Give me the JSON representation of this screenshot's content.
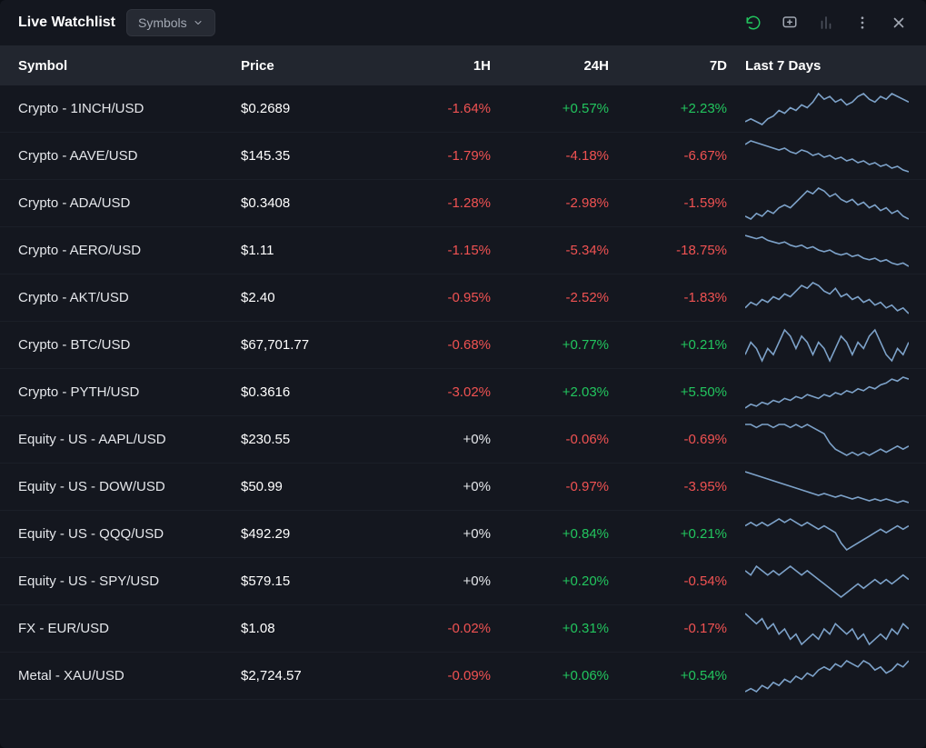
{
  "title": "Live Watchlist",
  "dropdown_label": "Symbols",
  "colors": {
    "positive": "#22c55e",
    "negative": "#f05252",
    "neutral": "#e5e7eb",
    "sparkline": "#7da2c9",
    "background": "#14171f",
    "header_bg": "#22262f"
  },
  "columns": {
    "symbol": "Symbol",
    "price": "Price",
    "h1": "1H",
    "h24": "24H",
    "d7": "7D",
    "last7": "Last 7 Days"
  },
  "rows": [
    {
      "symbol": "Crypto - 1INCH/USD",
      "price": "$0.2689",
      "h1": "-1.64%",
      "h24": "+0.57%",
      "d7": "+2.23%",
      "spark": [
        18,
        19,
        18,
        17,
        19,
        20,
        22,
        21,
        23,
        22,
        24,
        23,
        25,
        28,
        26,
        27,
        25,
        26,
        24,
        25,
        27,
        28,
        26,
        25,
        27,
        26,
        28,
        27,
        26,
        25
      ]
    },
    {
      "symbol": "Crypto - AAVE/USD",
      "price": "$145.35",
      "h1": "-1.79%",
      "h24": "-4.18%",
      "d7": "-6.67%",
      "spark": [
        30,
        32,
        31,
        30,
        29,
        28,
        27,
        28,
        26,
        25,
        27,
        26,
        24,
        25,
        23,
        24,
        22,
        23,
        21,
        22,
        20,
        21,
        19,
        20,
        18,
        19,
        17,
        18,
        16,
        15
      ]
    },
    {
      "symbol": "Crypto - ADA/USD",
      "price": "$0.3408",
      "h1": "-1.28%",
      "h24": "-2.98%",
      "d7": "-1.59%",
      "spark": [
        18,
        17,
        19,
        18,
        20,
        19,
        21,
        22,
        21,
        23,
        25,
        27,
        26,
        28,
        27,
        25,
        26,
        24,
        23,
        24,
        22,
        23,
        21,
        22,
        20,
        21,
        19,
        20,
        18,
        17
      ]
    },
    {
      "symbol": "Crypto - AERO/USD",
      "price": "$1.11",
      "h1": "-1.15%",
      "h24": "-5.34%",
      "d7": "-18.75%",
      "spark": [
        32,
        31,
        30,
        31,
        29,
        28,
        27,
        28,
        26,
        25,
        26,
        24,
        25,
        23,
        22,
        23,
        21,
        20,
        21,
        19,
        20,
        18,
        17,
        18,
        16,
        17,
        15,
        14,
        15,
        13
      ]
    },
    {
      "symbol": "Crypto - AKT/USD",
      "price": "$2.40",
      "h1": "-0.95%",
      "h24": "-2.52%",
      "d7": "-1.83%",
      "spark": [
        20,
        22,
        21,
        23,
        22,
        24,
        23,
        25,
        24,
        26,
        28,
        27,
        29,
        28,
        26,
        25,
        27,
        24,
        25,
        23,
        24,
        22,
        23,
        21,
        22,
        20,
        21,
        19,
        20,
        18
      ]
    },
    {
      "symbol": "Crypto - BTC/USD",
      "price": "$67,701.77",
      "h1": "-0.68%",
      "h24": "+0.77%",
      "d7": "+0.21%",
      "spark": [
        22,
        24,
        23,
        21,
        23,
        22,
        24,
        26,
        25,
        23,
        25,
        24,
        22,
        24,
        23,
        21,
        23,
        25,
        24,
        22,
        24,
        23,
        25,
        26,
        24,
        22,
        21,
        23,
        22,
        24
      ]
    },
    {
      "symbol": "Crypto - PYTH/USD",
      "price": "$0.3616",
      "h1": "-3.02%",
      "h24": "+2.03%",
      "d7": "+5.50%",
      "spark": [
        16,
        18,
        17,
        19,
        18,
        20,
        19,
        21,
        20,
        22,
        21,
        23,
        22,
        21,
        23,
        22,
        24,
        23,
        25,
        24,
        26,
        25,
        27,
        26,
        28,
        29,
        31,
        30,
        32,
        31
      ]
    },
    {
      "symbol": "Equity - US - AAPL/USD",
      "price": "$230.55",
      "h1": "+0%",
      "h24": "-0.06%",
      "d7": "-0.69%",
      "spark": [
        28,
        28,
        27,
        28,
        28,
        27,
        28,
        28,
        27,
        28,
        27,
        28,
        27,
        26,
        25,
        22,
        20,
        19,
        18,
        19,
        18,
        19,
        18,
        19,
        20,
        19,
        20,
        21,
        20,
        21
      ]
    },
    {
      "symbol": "Equity - US - DOW/USD",
      "price": "$50.99",
      "h1": "+0%",
      "h24": "-0.97%",
      "d7": "-3.95%",
      "spark": [
        30,
        29,
        28,
        27,
        26,
        25,
        24,
        23,
        22,
        21,
        20,
        19,
        18,
        17,
        18,
        17,
        16,
        17,
        16,
        15,
        16,
        15,
        14,
        15,
        14,
        15,
        14,
        13,
        14,
        13
      ]
    },
    {
      "symbol": "Equity - US - QQQ/USD",
      "price": "$492.29",
      "h1": "+0%",
      "h24": "+0.84%",
      "d7": "+0.21%",
      "spark": [
        24,
        25,
        24,
        25,
        24,
        25,
        26,
        25,
        26,
        25,
        24,
        25,
        24,
        23,
        24,
        23,
        22,
        19,
        17,
        18,
        19,
        20,
        21,
        22,
        23,
        22,
        23,
        24,
        23,
        24
      ]
    },
    {
      "symbol": "Equity - US - SPY/USD",
      "price": "$579.15",
      "h1": "+0%",
      "h24": "+0.20%",
      "d7": "-0.54%",
      "spark": [
        25,
        24,
        26,
        25,
        24,
        25,
        24,
        25,
        26,
        25,
        24,
        25,
        24,
        23,
        22,
        21,
        20,
        19,
        20,
        21,
        22,
        21,
        22,
        23,
        22,
        23,
        22,
        23,
        24,
        23
      ]
    },
    {
      "symbol": "FX - EUR/USD",
      "price": "$1.08",
      "h1": "-0.02%",
      "h24": "+0.31%",
      "d7": "-0.17%",
      "spark": [
        26,
        25,
        24,
        25,
        23,
        24,
        22,
        23,
        21,
        22,
        20,
        21,
        22,
        21,
        23,
        22,
        24,
        23,
        22,
        23,
        21,
        22,
        20,
        21,
        22,
        21,
        23,
        22,
        24,
        23
      ]
    },
    {
      "symbol": "Metal - XAU/USD",
      "price": "$2,724.57",
      "h1": "-0.09%",
      "h24": "+0.06%",
      "d7": "+0.54%",
      "spark": [
        18,
        19,
        18,
        20,
        19,
        21,
        20,
        22,
        21,
        23,
        22,
        24,
        23,
        25,
        26,
        25,
        27,
        26,
        28,
        27,
        26,
        28,
        27,
        25,
        26,
        24,
        25,
        27,
        26,
        28
      ]
    }
  ]
}
